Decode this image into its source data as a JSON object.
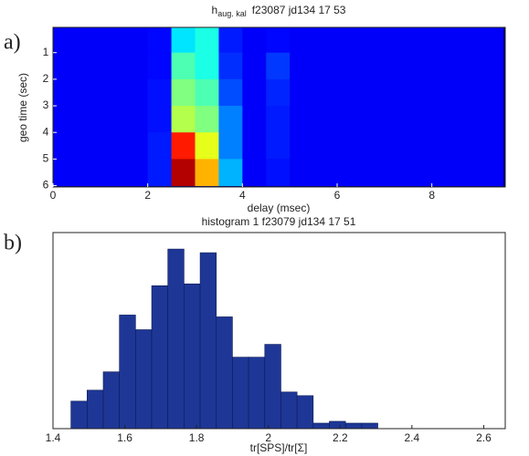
{
  "panels": [
    "a)",
    "b)"
  ],
  "chart_data": [
    {
      "type": "heatmap",
      "title": "h",
      "title_subscript": "aug. kal",
      "title_suffix": "f23087 jd134  17 53",
      "xlabel": "delay (msec)",
      "ylabel": "geo time (sec)",
      "colormap": "jet",
      "x_bins": [
        0,
        0.5,
        1,
        1.5,
        2,
        2.5,
        3,
        3.5,
        4,
        4.5,
        5,
        5.5,
        6,
        6.5,
        7,
        7.5,
        8,
        8.5,
        9,
        9.5
      ],
      "y_bins": [
        0,
        1,
        2,
        3,
        4,
        5,
        6
      ],
      "z": [
        [
          0.12,
          0.12,
          0.12,
          0.12,
          0.13,
          0.35,
          0.4,
          0.15,
          0.12,
          0.13,
          0.12,
          0.12,
          0.12,
          0.12,
          0.12,
          0.12,
          0.12,
          0.12,
          0.12
        ],
        [
          0.12,
          0.12,
          0.12,
          0.12,
          0.13,
          0.45,
          0.4,
          0.17,
          0.12,
          0.18,
          0.12,
          0.12,
          0.12,
          0.12,
          0.12,
          0.12,
          0.12,
          0.12,
          0.12
        ],
        [
          0.12,
          0.12,
          0.12,
          0.12,
          0.14,
          0.5,
          0.45,
          0.2,
          0.12,
          0.16,
          0.12,
          0.12,
          0.12,
          0.12,
          0.12,
          0.12,
          0.12,
          0.12,
          0.12
        ],
        [
          0.12,
          0.12,
          0.12,
          0.12,
          0.14,
          0.55,
          0.5,
          0.25,
          0.12,
          0.15,
          0.12,
          0.12,
          0.12,
          0.12,
          0.12,
          0.12,
          0.12,
          0.12,
          0.12
        ],
        [
          0.12,
          0.12,
          0.12,
          0.12,
          0.15,
          0.85,
          0.6,
          0.25,
          0.12,
          0.15,
          0.12,
          0.12,
          0.12,
          0.12,
          0.12,
          0.12,
          0.12,
          0.12,
          0.12
        ],
        [
          0.12,
          0.12,
          0.12,
          0.12,
          0.15,
          0.95,
          0.7,
          0.3,
          0.12,
          0.14,
          0.12,
          0.12,
          0.12,
          0.12,
          0.12,
          0.12,
          0.12,
          0.12,
          0.12
        ]
      ],
      "xlim": [
        0,
        9.55
      ],
      "ylim": [
        6.05,
        0.05
      ],
      "xticks": [
        0,
        2,
        4,
        6,
        8
      ],
      "yticks": [
        1,
        2,
        3,
        4,
        5,
        6
      ]
    },
    {
      "type": "histogram",
      "title": "histogram 1 f23079 jd134  17 51",
      "xlabel": "tr[SPS]/tr[Σ]",
      "color": "#1e3796",
      "bins": [
        1.45,
        1.495,
        1.54,
        1.585,
        1.63,
        1.675,
        1.72,
        1.765,
        1.81,
        1.855,
        1.9,
        1.945,
        1.99,
        2.035,
        2.08,
        2.125,
        2.17,
        2.215,
        2.26,
        2.305
      ],
      "counts": [
        15,
        21,
        31,
        62,
        54,
        78,
        98,
        79,
        96,
        61,
        39,
        39,
        46,
        20,
        18,
        3,
        4,
        3,
        3
      ],
      "xlim": [
        1.4,
        2.66
      ],
      "ylim": [
        0,
        107
      ],
      "xticks": [
        1.4,
        1.6,
        1.8,
        2,
        2.2,
        2.4,
        2.6
      ]
    }
  ]
}
